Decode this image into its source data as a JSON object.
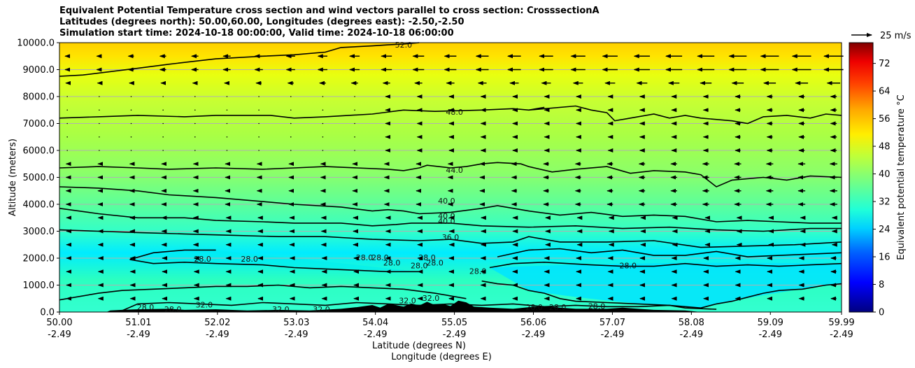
{
  "chart_data": {
    "type": "heatmap",
    "title_lines": [
      "Equivalent Potential Temperature cross section and wind vectors parallel to cross section: CrosssectionA",
      "Latitudes (degrees north): 50.00,60.00, Longitudes (degrees east): -2.50,-2.50",
      "Simulation start time: 2024-10-18 00:00:00, Valid time: 2024-10-18 06:00:00"
    ],
    "ylabel": "Altitude (meters)",
    "xlabel_line1": "Latitude (degrees N)",
    "xlabel_line2": "Longitude (degrees E)",
    "ylim": [
      0,
      10000
    ],
    "y_ticks": [
      "0.0",
      "1000.0",
      "2000.0",
      "3000.0",
      "4000.0",
      "5000.0",
      "6000.0",
      "7000.0",
      "8000.0",
      "9000.0",
      "10000.0"
    ],
    "x_ticks": [
      {
        "lat": "50.00",
        "lon": "-2.49"
      },
      {
        "lat": "51.01",
        "lon": "-2.49"
      },
      {
        "lat": "52.02",
        "lon": "-2.49"
      },
      {
        "lat": "53.03",
        "lon": "-2.49"
      },
      {
        "lat": "54.04",
        "lon": "-2.49"
      },
      {
        "lat": "55.05",
        "lon": "-2.49"
      },
      {
        "lat": "56.06",
        "lon": "-2.49"
      },
      {
        "lat": "57.07",
        "lon": "-2.49"
      },
      {
        "lat": "58.08",
        "lon": "-2.49"
      },
      {
        "lat": "59.09",
        "lon": "-2.49"
      },
      {
        "lat": "59.99",
        "lon": "-2.49"
      }
    ],
    "grid": "horizontal",
    "colorbar": {
      "label": "Equivalent potential temperature $^\\circ$C",
      "ticks": [
        "0",
        "8",
        "16",
        "24",
        "32",
        "40",
        "48",
        "56",
        "64",
        "72"
      ],
      "range": [
        0,
        78
      ]
    },
    "quiver_key": "25 m/s",
    "contour_labels": [
      {
        "text": "52.0",
        "x": 0.44,
        "alt": 9900
      },
      {
        "text": "48.0",
        "x": 0.505,
        "alt": 7400
      },
      {
        "text": "44.0",
        "x": 0.505,
        "alt": 5250
      },
      {
        "text": "40.0",
        "x": 0.495,
        "alt": 4100
      },
      {
        "text": "40.0",
        "x": 0.495,
        "alt": 3550
      },
      {
        "text": "40.0",
        "x": 0.495,
        "alt": 3350
      },
      {
        "text": "36.0",
        "x": 0.5,
        "alt": 2750
      },
      {
        "text": "28.0",
        "x": 0.183,
        "alt": 1950
      },
      {
        "text": "28.0",
        "x": 0.243,
        "alt": 1950
      },
      {
        "text": "28.0",
        "x": 0.39,
        "alt": 2000
      },
      {
        "text": "28.0",
        "x": 0.41,
        "alt": 2000
      },
      {
        "text": "28.0",
        "x": 0.425,
        "alt": 1800
      },
      {
        "text": "28.0",
        "x": 0.47,
        "alt": 2000
      },
      {
        "text": "28.0",
        "x": 0.46,
        "alt": 1700
      },
      {
        "text": "28.0",
        "x": 0.48,
        "alt": 1800
      },
      {
        "text": "28.0",
        "x": 0.535,
        "alt": 1500
      },
      {
        "text": "28.0",
        "x": 0.727,
        "alt": 1700
      },
      {
        "text": "28.0",
        "x": 0.607,
        "alt": 150
      },
      {
        "text": "28.0",
        "x": 0.637,
        "alt": 150
      },
      {
        "text": "28.0",
        "x": 0.687,
        "alt": 200
      },
      {
        "text": "28.0",
        "x": 0.11,
        "alt": 150
      },
      {
        "text": "28.0",
        "x": 0.145,
        "alt": 80
      },
      {
        "text": "32.0",
        "x": 0.185,
        "alt": 250
      },
      {
        "text": "32.0",
        "x": 0.283,
        "alt": 80
      },
      {
        "text": "32.0",
        "x": 0.335,
        "alt": 80
      },
      {
        "text": "32.0",
        "x": 0.445,
        "alt": 400
      },
      {
        "text": "32.0",
        "x": 0.475,
        "alt": 500
      }
    ],
    "contour_lines": [
      {
        "level": 52,
        "points": [
          [
            0,
            8750
          ],
          [
            0.03,
            8800
          ],
          [
            0.1,
            9050
          ],
          [
            0.14,
            9200
          ],
          [
            0.2,
            9400
          ],
          [
            0.26,
            9500
          ],
          [
            0.3,
            9550
          ],
          [
            0.34,
            9650
          ],
          [
            0.36,
            9820
          ],
          [
            0.4,
            9880
          ],
          [
            0.42,
            9920
          ],
          [
            0.44,
            9950
          ],
          [
            0.46,
            10000
          ]
        ]
      },
      {
        "level": 48,
        "points": [
          [
            0,
            7200
          ],
          [
            0.05,
            7250
          ],
          [
            0.1,
            7300
          ],
          [
            0.16,
            7250
          ],
          [
            0.2,
            7300
          ],
          [
            0.27,
            7300
          ],
          [
            0.3,
            7200
          ],
          [
            0.34,
            7250
          ],
          [
            0.4,
            7350
          ],
          [
            0.44,
            7500
          ],
          [
            0.48,
            7450
          ],
          [
            0.54,
            7500
          ],
          [
            0.58,
            7550
          ],
          [
            0.6,
            7500
          ],
          [
            0.62,
            7600
          ],
          [
            0.6,
            7500
          ],
          [
            0.66,
            7650
          ],
          [
            0.68,
            7500
          ],
          [
            0.7,
            7400
          ],
          [
            0.71,
            7100
          ],
          [
            0.73,
            7200
          ],
          [
            0.76,
            7350
          ],
          [
            0.78,
            7200
          ],
          [
            0.8,
            7300
          ],
          [
            0.82,
            7200
          ],
          [
            0.86,
            7100
          ],
          [
            0.88,
            7000
          ],
          [
            0.9,
            7250
          ],
          [
            0.93,
            7300
          ],
          [
            0.96,
            7200
          ],
          [
            0.98,
            7350
          ],
          [
            1,
            7300
          ]
        ]
      },
      {
        "level": 44,
        "points": [
          [
            0,
            5350
          ],
          [
            0.05,
            5400
          ],
          [
            0.1,
            5350
          ],
          [
            0.14,
            5300
          ],
          [
            0.2,
            5350
          ],
          [
            0.26,
            5300
          ],
          [
            0.3,
            5350
          ],
          [
            0.34,
            5400
          ],
          [
            0.38,
            5350
          ],
          [
            0.42,
            5300
          ],
          [
            0.44,
            5250
          ],
          [
            0.46,
            5350
          ],
          [
            0.47,
            5450
          ],
          [
            0.5,
            5350
          ],
          [
            0.52,
            5400
          ],
          [
            0.54,
            5500
          ],
          [
            0.56,
            5550
          ],
          [
            0.59,
            5500
          ],
          [
            0.6,
            5400
          ],
          [
            0.63,
            5200
          ],
          [
            0.66,
            5300
          ],
          [
            0.7,
            5400
          ],
          [
            0.73,
            5150
          ],
          [
            0.76,
            5250
          ],
          [
            0.8,
            5200
          ],
          [
            0.82,
            5100
          ],
          [
            0.84,
            4650
          ],
          [
            0.86,
            4900
          ],
          [
            0.9,
            5000
          ],
          [
            0.93,
            4900
          ],
          [
            0.96,
            5050
          ],
          [
            1,
            5000
          ]
        ]
      },
      {
        "level": 40,
        "points": [
          [
            0,
            4650
          ],
          [
            0.05,
            4600
          ],
          [
            0.1,
            4500
          ],
          [
            0.14,
            4350
          ],
          [
            0.2,
            4250
          ],
          [
            0.26,
            4100
          ],
          [
            0.3,
            4000
          ],
          [
            0.36,
            3900
          ],
          [
            0.4,
            3750
          ],
          [
            0.42,
            3800
          ],
          [
            0.44,
            3750
          ],
          [
            0.46,
            3650
          ],
          [
            0.5,
            3700
          ],
          [
            0.54,
            3850
          ],
          [
            0.56,
            3950
          ],
          [
            0.6,
            3750
          ],
          [
            0.64,
            3600
          ],
          [
            0.68,
            3700
          ],
          [
            0.72,
            3550
          ],
          [
            0.76,
            3600
          ],
          [
            0.8,
            3550
          ],
          [
            0.84,
            3350
          ],
          [
            0.88,
            3400
          ],
          [
            0.92,
            3350
          ],
          [
            0.96,
            3300
          ],
          [
            1,
            3300
          ]
        ]
      },
      {
        "level": 40,
        "points": [
          [
            0,
            3850
          ],
          [
            0.05,
            3650
          ],
          [
            0.1,
            3500
          ],
          [
            0.16,
            3500
          ],
          [
            0.2,
            3400
          ],
          [
            0.26,
            3350
          ],
          [
            0.3,
            3300
          ],
          [
            0.36,
            3300
          ],
          [
            0.4,
            3200
          ],
          [
            0.43,
            3250
          ],
          [
            0.45,
            3300
          ],
          [
            0.5,
            3300
          ],
          [
            0.54,
            3200
          ],
          [
            0.6,
            3150
          ],
          [
            0.66,
            3200
          ],
          [
            0.72,
            3100
          ],
          [
            0.78,
            3150
          ],
          [
            0.84,
            3050
          ],
          [
            0.9,
            3000
          ],
          [
            0.96,
            3100
          ],
          [
            1,
            3100
          ]
        ]
      },
      {
        "level": 36,
        "points": [
          [
            0,
            3050
          ],
          [
            0.05,
            3000
          ],
          [
            0.1,
            2950
          ],
          [
            0.16,
            2900
          ],
          [
            0.22,
            2850
          ],
          [
            0.28,
            2800
          ],
          [
            0.34,
            2800
          ],
          [
            0.4,
            2700
          ],
          [
            0.46,
            2650
          ],
          [
            0.5,
            2700
          ],
          [
            0.54,
            2550
          ],
          [
            0.58,
            2600
          ],
          [
            0.6,
            2800
          ],
          [
            0.64,
            2600
          ],
          [
            0.7,
            2600
          ],
          [
            0.76,
            2650
          ],
          [
            0.82,
            2400
          ],
          [
            0.88,
            2450
          ],
          [
            0.94,
            2500
          ],
          [
            1,
            2600
          ]
        ]
      },
      {
        "level": 32,
        "points": [
          [
            0.56,
            2050
          ],
          [
            0.6,
            2300
          ],
          [
            0.64,
            2350
          ],
          [
            0.68,
            2200
          ],
          [
            0.72,
            2300
          ],
          [
            0.76,
            2100
          ],
          [
            0.8,
            2100
          ],
          [
            0.84,
            2250
          ],
          [
            0.88,
            2050
          ],
          [
            0.92,
            2100
          ],
          [
            0.96,
            2150
          ],
          [
            1,
            2200
          ]
        ]
      },
      {
        "level": 28,
        "points": [
          [
            0.09,
            1950
          ],
          [
            0.12,
            2200
          ],
          [
            0.16,
            2300
          ],
          [
            0.18,
            2300
          ],
          [
            0.2,
            2300
          ]
        ]
      },
      {
        "level": 28,
        "points": [
          [
            0.09,
            1950
          ],
          [
            0.12,
            1800
          ],
          [
            0.16,
            1850
          ],
          [
            0.2,
            1800
          ],
          [
            0.26,
            1750
          ],
          [
            0.3,
            1650
          ],
          [
            0.34,
            1600
          ],
          [
            0.38,
            1550
          ],
          [
            0.42,
            1500
          ],
          [
            0.46,
            1500
          ]
        ]
      },
      {
        "level": 28,
        "points": [
          [
            0.55,
            1650
          ],
          [
            0.58,
            1800
          ],
          [
            0.62,
            1850
          ],
          [
            0.68,
            1750
          ],
          [
            0.72,
            1700
          ],
          [
            0.76,
            1700
          ],
          [
            0.8,
            1800
          ],
          [
            0.84,
            1700
          ],
          [
            0.88,
            1750
          ],
          [
            0.92,
            1700
          ],
          [
            0.96,
            1750
          ],
          [
            1,
            1800
          ]
        ]
      },
      {
        "level": 32,
        "points": [
          [
            0,
            450
          ],
          [
            0.02,
            550
          ],
          [
            0.05,
            700
          ],
          [
            0.08,
            800
          ],
          [
            0.12,
            850
          ],
          [
            0.16,
            900
          ],
          [
            0.2,
            950
          ],
          [
            0.24,
            950
          ],
          [
            0.28,
            1000
          ],
          [
            0.32,
            900
          ],
          [
            0.36,
            950
          ],
          [
            0.4,
            900
          ],
          [
            0.44,
            850
          ],
          [
            0.48,
            700
          ],
          [
            0.5,
            600
          ],
          [
            0.52,
            500
          ]
        ]
      },
      {
        "level": 28,
        "points": [
          [
            0.54,
            1150
          ],
          [
            0.56,
            1050
          ],
          [
            0.58,
            1000
          ],
          [
            0.6,
            800
          ],
          [
            0.62,
            700
          ],
          [
            0.64,
            500
          ],
          [
            0.66,
            400
          ],
          [
            0.7,
            350
          ],
          [
            0.74,
            300
          ],
          [
            0.78,
            250
          ],
          [
            0.8,
            200
          ],
          [
            0.82,
            150
          ],
          [
            0.84,
            300
          ],
          [
            0.86,
            400
          ],
          [
            0.88,
            550
          ],
          [
            0.9,
            700
          ],
          [
            0.92,
            800
          ],
          [
            0.95,
            850
          ],
          [
            0.98,
            1000
          ],
          [
            1,
            1050
          ]
        ]
      },
      {
        "level": 28,
        "points": [
          [
            0.08,
            50
          ],
          [
            0.1,
            300
          ],
          [
            0.14,
            350
          ],
          [
            0.18,
            300
          ],
          [
            0.22,
            250
          ],
          [
            0.26,
            350
          ],
          [
            0.3,
            300
          ],
          [
            0.34,
            250
          ],
          [
            0.38,
            350
          ],
          [
            0.42,
            300
          ],
          [
            0.46,
            250
          ],
          [
            0.5,
            300
          ],
          [
            0.54,
            250
          ],
          [
            0.58,
            300
          ],
          [
            0.62,
            200
          ],
          [
            0.66,
            250
          ],
          [
            0.7,
            200
          ],
          [
            0.74,
            200
          ],
          [
            0.78,
            250
          ],
          [
            0.8,
            150
          ],
          [
            0.84,
            100
          ]
        ]
      }
    ]
  }
}
